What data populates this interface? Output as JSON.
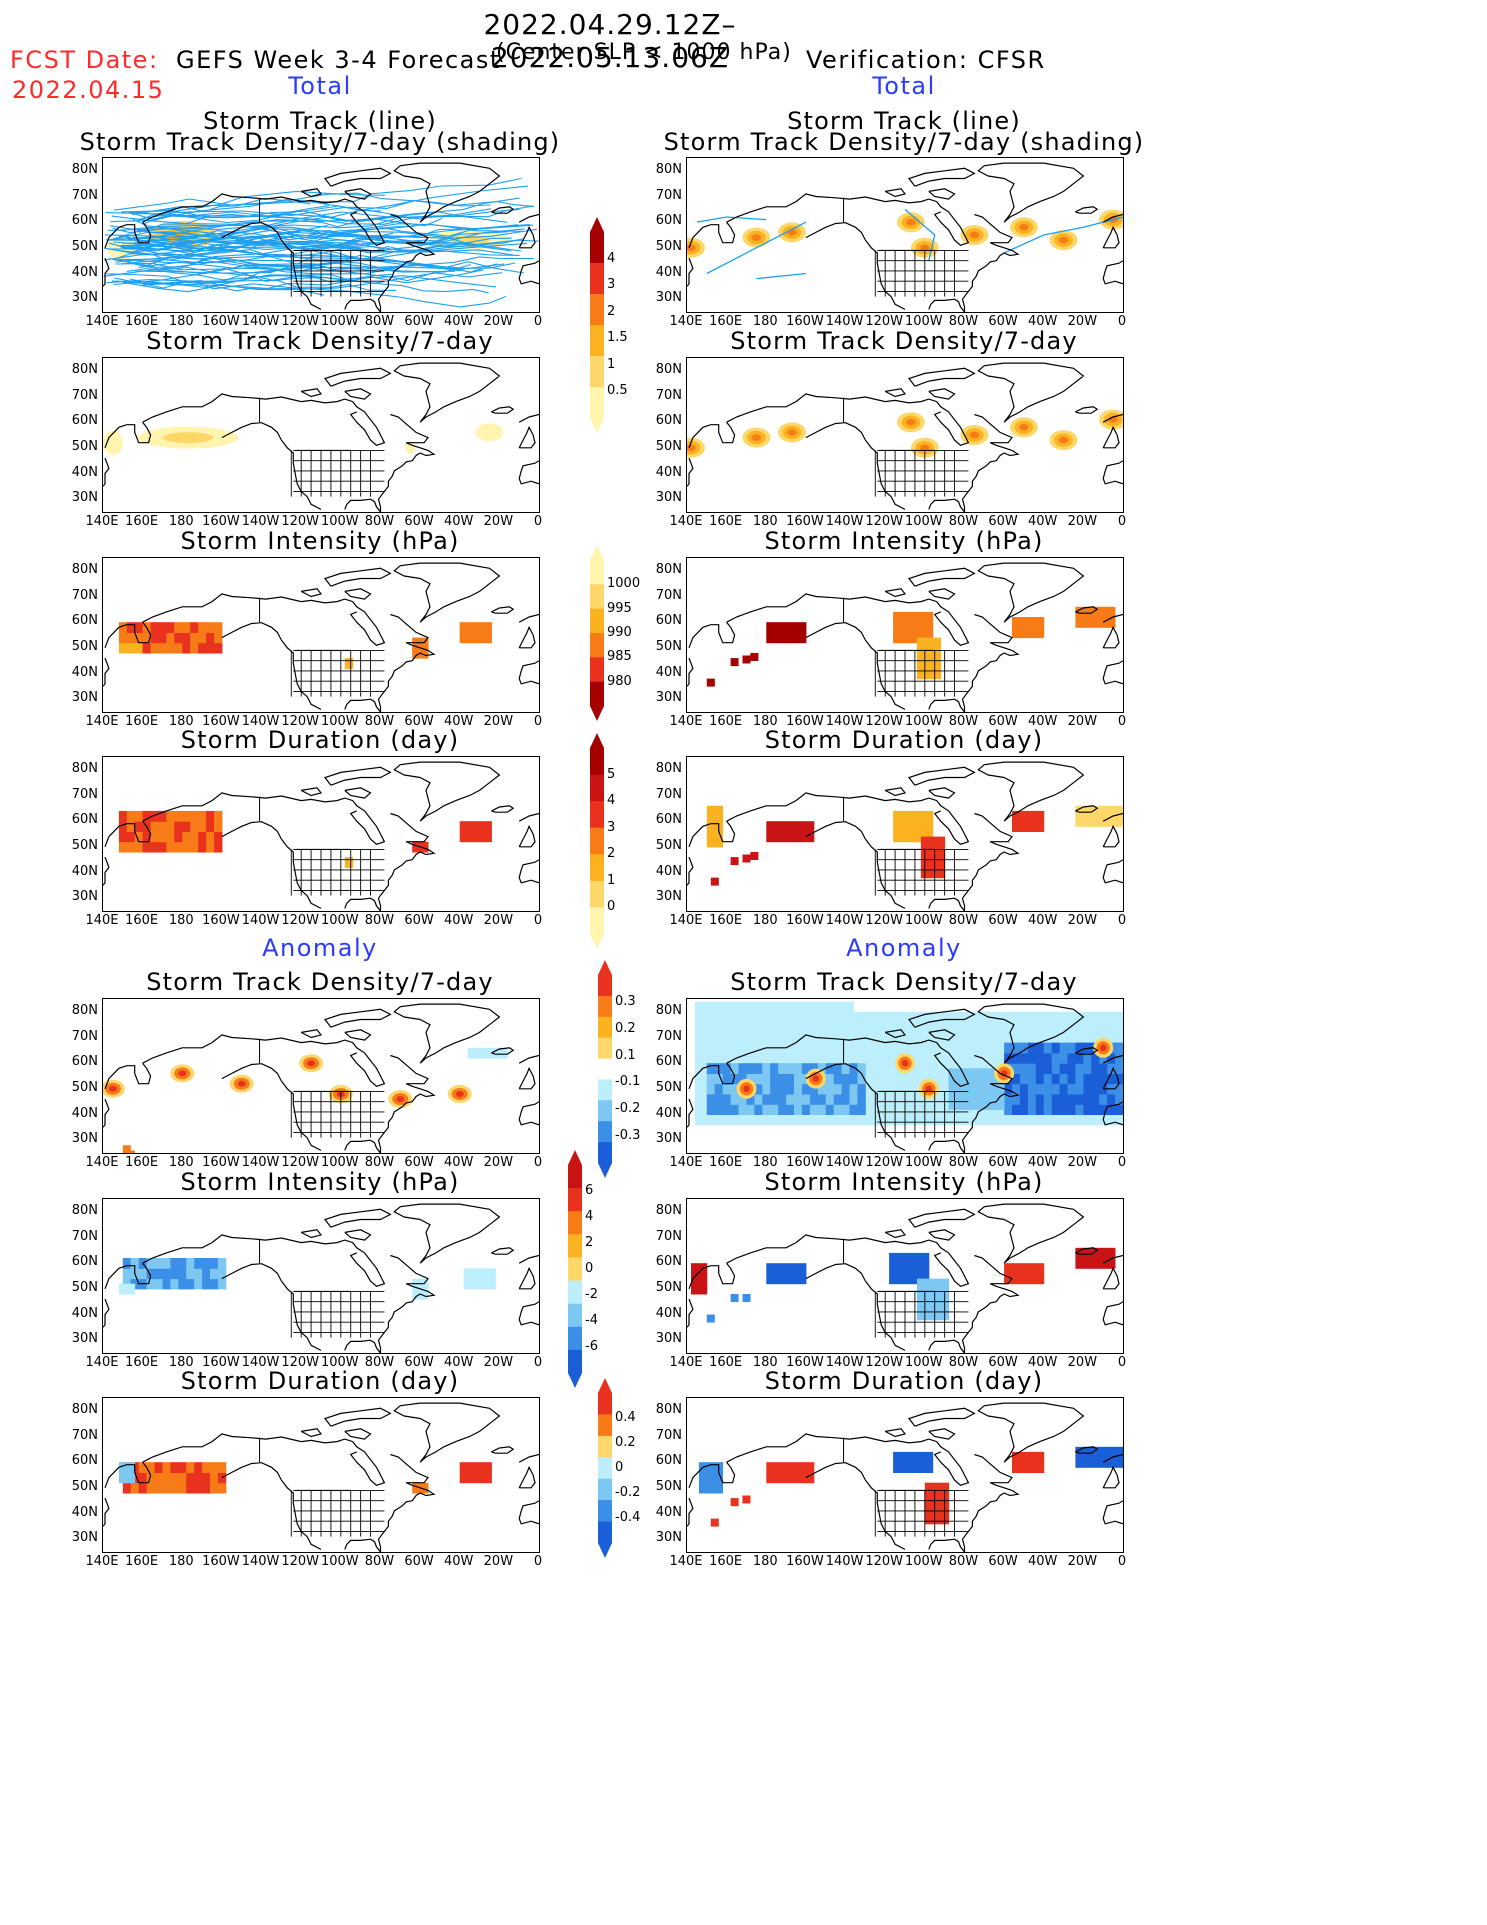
{
  "header": {
    "period": "2022.04.29.12Z–2022.05.13.06Z",
    "fcst_label": "FCST Date:",
    "fcst_date": "2022.04.15",
    "left_title": "GEFS Week 3-4 Forecast",
    "condition": "(Center SLP < 1000 hPa)",
    "right_title": "Verification: CFSR"
  },
  "sections": {
    "total": "Total",
    "anomaly": "Anomaly"
  },
  "axes": {
    "lat_ticks": [
      "80N",
      "70N",
      "60N",
      "50N",
      "40N",
      "30N"
    ],
    "lon_ticks": [
      "140E",
      "160E",
      "180",
      "160W",
      "140W",
      "120W",
      "100W",
      "80W",
      "60W",
      "40W",
      "20W",
      "0"
    ]
  },
  "panels": {
    "fc_track": {
      "title1": "Storm Track (line)",
      "title2": "Storm Track Density/7-day (shading)"
    },
    "vf_track": {
      "title1": "Storm Track (line)",
      "title2": "Storm Track Density/7-day (shading)"
    },
    "fc_density": {
      "title": "Storm Track Density/7-day"
    },
    "vf_density": {
      "title": "Storm Track Density/7-day"
    },
    "fc_intensity": {
      "title": "Storm Intensity (hPa)"
    },
    "vf_intensity": {
      "title": "Storm Intensity (hPa)"
    },
    "fc_duration": {
      "title": "Storm Duration (day)"
    },
    "vf_duration": {
      "title": "Storm Duration (day)"
    },
    "fc_anom_density": {
      "title": "Storm Track Density/7-day"
    },
    "vf_anom_density": {
      "title": "Storm Track Density/7-day"
    },
    "fc_anom_intensity": {
      "title": "Storm Intensity (hPa)"
    },
    "vf_anom_intensity": {
      "title": "Storm Intensity (hPa)"
    },
    "fc_anom_duration": {
      "title": "Storm Duration (day)"
    },
    "vf_anom_duration": {
      "title": "Storm Duration (day)"
    }
  },
  "colorbars": {
    "density": {
      "labels": [
        "4",
        "3",
        "2",
        "1.5",
        "1",
        "0.5"
      ],
      "colors": [
        "#a50000",
        "#e8321e",
        "#f77b17",
        "#fbb220",
        "#fdd76a",
        "#fff5ae"
      ]
    },
    "intensity": {
      "labels": [
        "1000",
        "995",
        "990",
        "985",
        "980"
      ],
      "colors": [
        "#fff5ae",
        "#fdd76a",
        "#fbb220",
        "#f77b17",
        "#e8321e",
        "#a50000"
      ]
    },
    "duration": {
      "labels": [
        "5",
        "4",
        "3",
        "2",
        "1",
        "0"
      ],
      "colors": [
        "#a50000",
        "#c81414",
        "#e8321e",
        "#f77b17",
        "#fbb220",
        "#fdd76a",
        "#fff5ae"
      ]
    },
    "anom_density": {
      "labels": [
        "0.3",
        "0.2",
        "0.1",
        "-0.1",
        "-0.2",
        "-0.3"
      ],
      "colors": [
        "#e8321e",
        "#f77b17",
        "#fbb220",
        "#fdd76a",
        "#ffffff",
        "#bdeefb",
        "#7cc8f3",
        "#3c8fe6",
        "#1a5fd8"
      ]
    },
    "anom_intensity": {
      "labels": [
        "6",
        "4",
        "2",
        "0",
        "-2",
        "-4",
        "-6"
      ],
      "colors": [
        "#c81414",
        "#e8321e",
        "#f77b17",
        "#fbb220",
        "#fdd76a",
        "#bdeefb",
        "#7cc8f3",
        "#3c8fe6",
        "#1a5fd8"
      ]
    },
    "anom_duration": {
      "labels": [
        "0.4",
        "0.2",
        "0",
        "-0.2",
        "-0.4"
      ],
      "colors": [
        "#e8321e",
        "#f77b17",
        "#fdd76a",
        "#bdeefb",
        "#7cc8f3",
        "#3c8fe6",
        "#1a5fd8"
      ]
    }
  },
  "colors": {
    "title_red": "#ff2a2a",
    "section_blue": "#2b3cff",
    "track_line": "#1ea0f0"
  }
}
